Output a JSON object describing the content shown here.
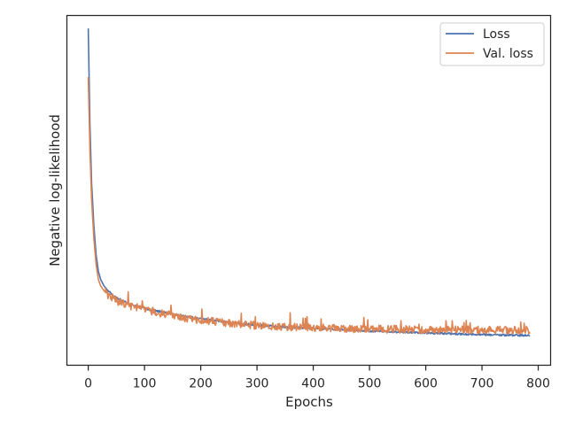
{
  "chart_data": {
    "type": "line",
    "xlabel": "Epochs",
    "ylabel": "Negative log-likelihood",
    "xlim": [
      -38,
      822
    ],
    "ylim": [
      -0.04,
      1.04
    ],
    "y_tick_labels_shown": false,
    "x_ticks": [
      0,
      100,
      200,
      300,
      400,
      500,
      600,
      700,
      800
    ],
    "grid": false,
    "legend_position": "upper right",
    "series": [
      {
        "name": "Loss",
        "color": "#4c72b0",
        "points": [
          [
            0,
            1.0
          ],
          [
            3,
            0.7
          ],
          [
            6,
            0.52
          ],
          [
            10,
            0.39
          ],
          [
            14,
            0.3
          ],
          [
            18,
            0.25
          ],
          [
            22,
            0.225
          ],
          [
            28,
            0.205
          ],
          [
            35,
            0.19
          ],
          [
            45,
            0.175
          ],
          [
            55,
            0.165
          ],
          [
            70,
            0.152
          ],
          [
            90,
            0.14
          ],
          [
            110,
            0.132
          ],
          [
            130,
            0.125
          ],
          [
            150,
            0.118
          ],
          [
            175,
            0.11
          ],
          [
            200,
            0.103
          ],
          [
            230,
            0.097
          ],
          [
            260,
            0.09
          ],
          [
            300,
            0.084
          ],
          [
            350,
            0.078
          ],
          [
            400,
            0.074
          ],
          [
            450,
            0.07
          ],
          [
            500,
            0.066
          ],
          [
            550,
            0.063
          ],
          [
            600,
            0.06
          ],
          [
            650,
            0.057
          ],
          [
            700,
            0.055
          ],
          [
            750,
            0.053
          ],
          [
            785,
            0.052
          ]
        ]
      },
      {
        "name": "Val. loss",
        "color": "#dd8452",
        "points": [
          [
            0,
            0.85
          ],
          [
            3,
            0.62
          ],
          [
            6,
            0.47
          ],
          [
            10,
            0.35
          ],
          [
            14,
            0.27
          ],
          [
            18,
            0.225
          ],
          [
            22,
            0.205
          ],
          [
            28,
            0.19
          ],
          [
            35,
            0.175
          ],
          [
            45,
            0.165
          ],
          [
            55,
            0.155
          ],
          [
            70,
            0.145
          ],
          [
            90,
            0.137
          ],
          [
            110,
            0.128
          ],
          [
            130,
            0.12
          ],
          [
            150,
            0.113
          ],
          [
            175,
            0.105
          ],
          [
            200,
            0.1
          ],
          [
            230,
            0.094
          ],
          [
            260,
            0.089
          ],
          [
            300,
            0.083
          ],
          [
            350,
            0.079
          ],
          [
            400,
            0.076
          ],
          [
            450,
            0.073
          ],
          [
            500,
            0.072
          ],
          [
            550,
            0.071
          ],
          [
            600,
            0.07
          ],
          [
            650,
            0.069
          ],
          [
            700,
            0.069
          ],
          [
            750,
            0.068
          ],
          [
            785,
            0.068
          ]
        ]
      }
    ]
  }
}
